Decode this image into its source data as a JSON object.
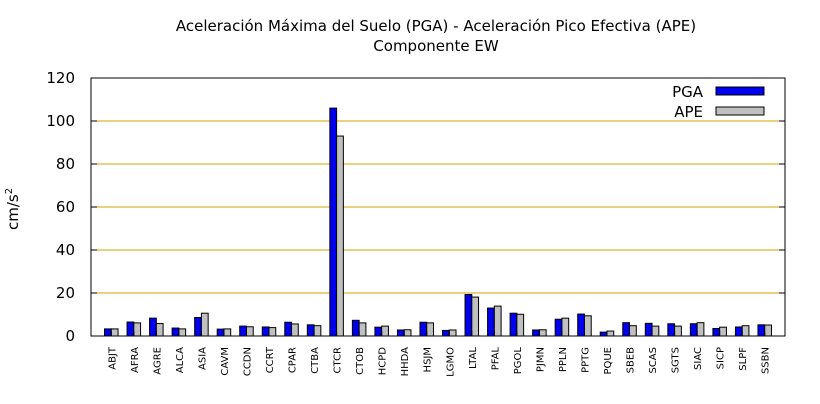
{
  "chart_data": {
    "type": "bar",
    "title": "Aceleración Máxima del Suelo (PGA) -  Aceleración Pico Efectiva (APE)",
    "subtitle": "Componente EW",
    "xlabel": "",
    "ylabel": "cm/s",
    "ylabel_superscript": "2",
    "ylim": [
      0,
      120
    ],
    "yticks": [
      0,
      20,
      40,
      60,
      80,
      100,
      120
    ],
    "grid": "horizontal",
    "legend_position": "top-right",
    "categories": [
      "ABJT",
      "AFRA",
      "AGRE",
      "ALCA",
      "ASIA",
      "CAVM",
      "CCDN",
      "CCRT",
      "CPAR",
      "CTBA",
      "CTCR",
      "CTOB",
      "HCPD",
      "HHDA",
      "HSJM",
      "LGMO",
      "LTAL",
      "PFAL",
      "PGOL",
      "PJMN",
      "PPLN",
      "PPTG",
      "PQUE",
      "SBEB",
      "SCAS",
      "SGTS",
      "SIAC",
      "SICP",
      "SLPF",
      "SSBN"
    ],
    "series": [
      {
        "name": "PGA",
        "color": "#0000ee",
        "values": [
          3.3,
          6.5,
          8.3,
          3.7,
          8.6,
          3.2,
          4.6,
          4.2,
          6.4,
          5.2,
          106,
          7.3,
          4.1,
          2.8,
          6.4,
          2.6,
          19.3,
          13,
          10.6,
          2.8,
          7.8,
          10.2,
          1.8,
          6.2,
          5.9,
          5.7,
          5.7,
          3.5,
          4.2,
          5.2
        ]
      },
      {
        "name": "APE",
        "color": "#c0c0c0",
        "values": [
          3.3,
          6.1,
          5.8,
          3.3,
          10.6,
          3.3,
          4.3,
          3.9,
          5.6,
          4.8,
          93,
          6.1,
          4.6,
          2.9,
          6.1,
          2.8,
          18.1,
          13.9,
          10.1,
          2.9,
          8.3,
          9.4,
          2.3,
          4.8,
          4.6,
          4.6,
          6.2,
          4.1,
          4.8,
          5.1
        ]
      }
    ],
    "colors": {
      "grid": "#d4a000",
      "axis": "#000000"
    }
  }
}
